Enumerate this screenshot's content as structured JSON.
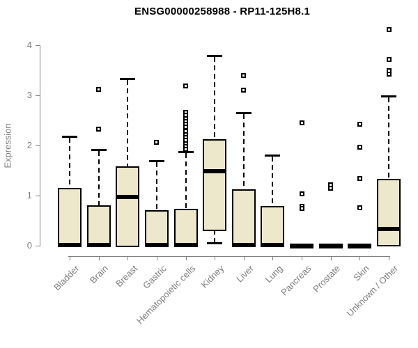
{
  "title": "ENSG00000258988 - RP11-125H8.1",
  "chart_data": {
    "type": "boxplot",
    "title": "ENSG00000258988 - RP11-125H8.1",
    "xlabel": "",
    "ylabel": "Expression",
    "ylim": [
      0,
      4.35
    ],
    "yticks": [
      0,
      1,
      2,
      3,
      4
    ],
    "grid": false,
    "legend": "none",
    "categories": [
      "Bladder",
      "Brain",
      "Breast",
      "Gastric",
      "Hematopoietic cells",
      "Kidney",
      "Liver",
      "Lung",
      "Pancreas",
      "Prostate",
      "Skin",
      "Unknown / Other"
    ],
    "boxes": [
      {
        "category": "Bladder",
        "q1": 0,
        "median": 0.02,
        "q3": 1.15,
        "whisker_low": 0,
        "whisker_high": 2.18,
        "outliers": []
      },
      {
        "category": "Brain",
        "q1": 0,
        "median": 0.02,
        "q3": 0.8,
        "whisker_low": 0,
        "whisker_high": 1.91,
        "outliers": [
          3.12,
          2.32
        ]
      },
      {
        "category": "Breast",
        "q1": 0,
        "median": 0.97,
        "q3": 1.58,
        "whisker_low": 0,
        "whisker_high": 3.34,
        "outliers": []
      },
      {
        "category": "Gastric",
        "q1": 0,
        "median": 0.02,
        "q3": 0.71,
        "whisker_low": 0,
        "whisker_high": 1.7,
        "outliers": [
          2.06
        ]
      },
      {
        "category": "Hematopoietic cells",
        "q1": 0,
        "median": 0.02,
        "q3": 0.74,
        "whisker_low": 0,
        "whisker_high": 1.87,
        "outliers": [
          3.19,
          2.66,
          2.6,
          2.54,
          2.48,
          2.43,
          2.37,
          2.28,
          2.22,
          2.16,
          2.1,
          2.04,
          1.98,
          1.92
        ]
      },
      {
        "category": "Kidney",
        "q1": 0.32,
        "median": 1.48,
        "q3": 2.12,
        "whisker_low": 0.06,
        "whisker_high": 3.79,
        "outliers": []
      },
      {
        "category": "Liver",
        "q1": 0,
        "median": 0.02,
        "q3": 1.13,
        "whisker_low": 0,
        "whisker_high": 2.65,
        "outliers": [
          3.4,
          3.11
        ]
      },
      {
        "category": "Lung",
        "q1": 0,
        "median": 0.02,
        "q3": 0.79,
        "whisker_low": 0,
        "whisker_high": 1.81,
        "outliers": []
      },
      {
        "category": "Pancreas",
        "q1": 0,
        "median": 0,
        "q3": 0,
        "whisker_low": 0,
        "whisker_high": 0,
        "outliers": [
          2.45,
          1.04,
          0.79,
          0.75
        ]
      },
      {
        "category": "Prostate",
        "q1": 0,
        "median": 0,
        "q3": 0,
        "whisker_low": 0,
        "whisker_high": 0,
        "outliers": [
          1.22,
          1.14
        ]
      },
      {
        "category": "Skin",
        "q1": 0,
        "median": 0,
        "q3": 0,
        "whisker_low": 0,
        "whisker_high": 0,
        "outliers": [
          2.43,
          1.96,
          1.34,
          0.76
        ]
      },
      {
        "category": "Unknown / Other",
        "q1": 0.01,
        "median": 0.33,
        "q3": 1.34,
        "whisker_low": 0.01,
        "whisker_high": 2.99,
        "outliers": [
          4.31,
          3.71,
          3.5,
          3.42
        ]
      }
    ],
    "colors": {
      "box_fill": "#ede7cb",
      "box_border": "#000000",
      "median": "#000000",
      "whisker": "#000000",
      "outlier": "#000000",
      "axis": "#808080",
      "axis_text": "#7d7d7d",
      "title_text": "#000000",
      "background": "#ffffff"
    }
  }
}
